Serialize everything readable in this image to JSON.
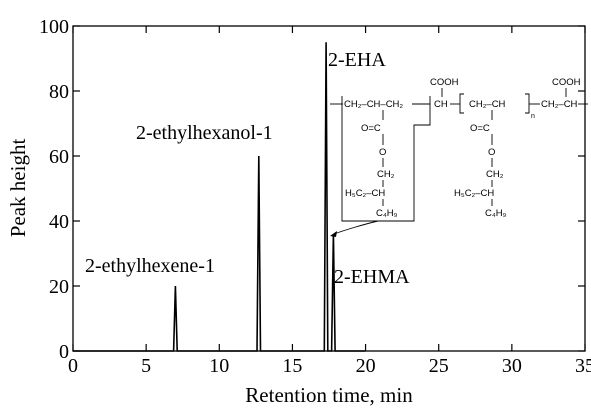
{
  "chart_data": {
    "type": "line",
    "xlabel": "Retention time, min",
    "ylabel": "Peak height",
    "xlim": [
      0,
      35
    ],
    "ylim": [
      0,
      100
    ],
    "xticks": [
      0,
      5,
      10,
      15,
      20,
      25,
      30,
      35
    ],
    "yticks": [
      0,
      20,
      40,
      60,
      80,
      100
    ],
    "grid": false,
    "series": [
      {
        "line_color": "#000000",
        "peaks": [
          {
            "x": 7.0,
            "y": 20
          },
          {
            "x": 12.7,
            "y": 60
          },
          {
            "x": 17.3,
            "y": 95
          },
          {
            "x": 17.8,
            "y": 36
          }
        ],
        "baseline_end_x": 20.0
      }
    ],
    "annotations": [
      {
        "text": "2-ethylhexene-1",
        "x": 7.0,
        "y": 20
      },
      {
        "text": "2-ethylhexanol-1",
        "x": 12.7,
        "y": 60
      },
      {
        "text": "2-EHA",
        "x": 17.3,
        "y": 95
      },
      {
        "text": "2-EHMA",
        "x": 17.8,
        "y": 36
      }
    ]
  },
  "structure": {
    "backbone_left": "CH₂–CH–CH₂",
    "cooh_label": "COOH",
    "ch_label": "CH",
    "repeat_unit": "CH₂–CH",
    "repeat_n": "n",
    "tail": "CH₂–CH",
    "ester_c": "O=C",
    "ester_o": "O",
    "ch2": "CH₂",
    "ethyl": "H₅C₂–CH",
    "butyl": "C₄H₉"
  }
}
